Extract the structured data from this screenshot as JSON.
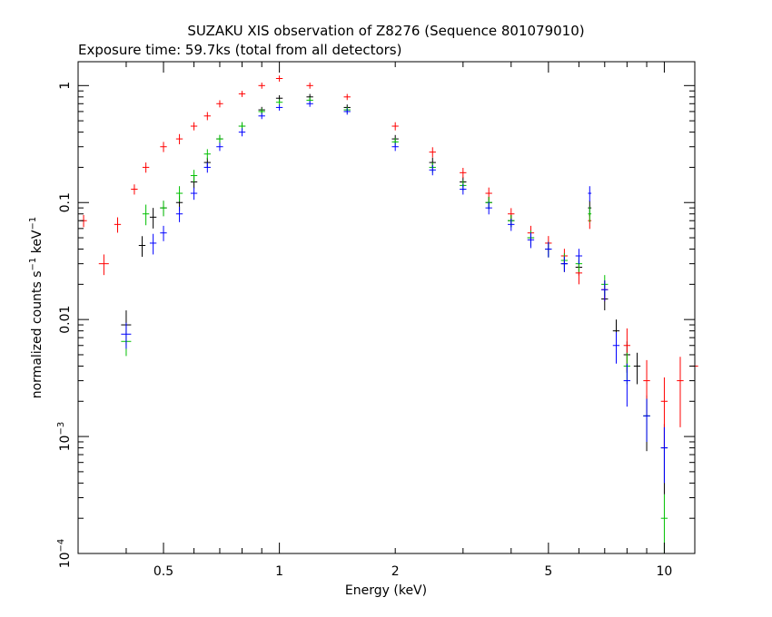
{
  "chart_data": {
    "type": "scatter",
    "title": "SUZAKU XIS observation of Z8276 (Sequence 801079010)",
    "subtitle": "Exposure time: 59.7ks (total from all detectors)",
    "xlabel": "Energy (keV)",
    "ylabel_main": "normalized counts s",
    "ylabel_sup1": "−1",
    "ylabel_mid": " keV",
    "ylabel_sup2": "−1",
    "x_scale": "log",
    "y_scale": "log",
    "xlim": [
      0.3,
      12
    ],
    "ylim": [
      0.0001,
      1.6
    ],
    "grid": false,
    "x_ticks": [
      {
        "value": 0.5,
        "label": "0.5"
      },
      {
        "value": 1,
        "label": "1"
      },
      {
        "value": 2,
        "label": "2"
      },
      {
        "value": 5,
        "label": "5"
      },
      {
        "value": 10,
        "label": "10"
      }
    ],
    "y_ticks": [
      {
        "value": 1,
        "label": "1"
      },
      {
        "value": 0.1,
        "label": "0.1"
      },
      {
        "value": 0.01,
        "label": "0.01"
      },
      {
        "value": 0.001,
        "label_base": "10",
        "label_exp": "−3"
      },
      {
        "value": 0.0001,
        "label_base": "10",
        "label_exp": "−4"
      }
    ],
    "series": [
      {
        "color": "#000000",
        "points": [
          [
            0.4,
            0.009,
            0.03,
            0.33
          ],
          [
            0.44,
            0.043,
            0.02,
            0.2
          ],
          [
            0.47,
            0.075,
            0.02,
            0.2
          ],
          [
            0.5,
            0.09,
            0.02,
            0.15
          ],
          [
            0.55,
            0.1,
            0.02,
            0.15
          ],
          [
            0.6,
            0.15,
            0.02,
            0.12
          ],
          [
            0.65,
            0.22,
            0.02,
            0.1
          ],
          [
            0.7,
            0.35,
            0.02,
            0.08
          ],
          [
            0.8,
            0.45,
            0.02,
            0.08
          ],
          [
            0.9,
            0.62,
            0.02,
            0.06
          ],
          [
            1.0,
            0.78,
            0.02,
            0.06
          ],
          [
            1.2,
            0.8,
            0.02,
            0.06
          ],
          [
            1.5,
            0.65,
            0.02,
            0.06
          ],
          [
            2.0,
            0.35,
            0.02,
            0.08
          ],
          [
            2.5,
            0.22,
            0.02,
            0.1
          ],
          [
            3.0,
            0.15,
            0.02,
            0.1
          ],
          [
            3.5,
            0.1,
            0.02,
            0.12
          ],
          [
            4.0,
            0.07,
            0.02,
            0.12
          ],
          [
            4.5,
            0.05,
            0.02,
            0.15
          ],
          [
            5.0,
            0.04,
            0.02,
            0.15
          ],
          [
            5.5,
            0.03,
            0.02,
            0.15
          ],
          [
            6.0,
            0.028,
            0.02,
            0.15
          ],
          [
            6.4,
            0.09,
            0.01,
            0.15
          ],
          [
            7.0,
            0.015,
            0.02,
            0.2
          ],
          [
            7.5,
            0.008,
            0.02,
            0.25
          ],
          [
            8.0,
            0.005,
            0.02,
            0.3
          ],
          [
            8.5,
            0.004,
            0.02,
            0.3
          ],
          [
            9.0,
            0.0015,
            0.02,
            0.5
          ],
          [
            10.0,
            0.0008,
            0.02,
            0.6
          ]
        ]
      },
      {
        "color": "#ff0000",
        "points": [
          [
            0.31,
            0.07,
            0.02,
            0.12
          ],
          [
            0.35,
            0.03,
            0.03,
            0.2
          ],
          [
            0.38,
            0.065,
            0.02,
            0.15
          ],
          [
            0.42,
            0.13,
            0.02,
            0.1
          ],
          [
            0.45,
            0.2,
            0.02,
            0.1
          ],
          [
            0.5,
            0.3,
            0.02,
            0.1
          ],
          [
            0.55,
            0.35,
            0.02,
            0.1
          ],
          [
            0.6,
            0.45,
            0.02,
            0.08
          ],
          [
            0.65,
            0.55,
            0.02,
            0.08
          ],
          [
            0.7,
            0.7,
            0.02,
            0.07
          ],
          [
            0.8,
            0.85,
            0.02,
            0.06
          ],
          [
            0.9,
            1.0,
            0.02,
            0.06
          ],
          [
            1.0,
            1.15,
            0.02,
            0.06
          ],
          [
            1.2,
            1.0,
            0.02,
            0.06
          ],
          [
            1.5,
            0.8,
            0.02,
            0.06
          ],
          [
            2.0,
            0.45,
            0.02,
            0.08
          ],
          [
            2.5,
            0.27,
            0.02,
            0.1
          ],
          [
            3.0,
            0.18,
            0.02,
            0.1
          ],
          [
            3.5,
            0.12,
            0.02,
            0.12
          ],
          [
            4.0,
            0.08,
            0.02,
            0.12
          ],
          [
            4.5,
            0.055,
            0.02,
            0.15
          ],
          [
            5.0,
            0.045,
            0.02,
            0.15
          ],
          [
            5.5,
            0.035,
            0.02,
            0.15
          ],
          [
            6.0,
            0.025,
            0.02,
            0.2
          ],
          [
            6.4,
            0.07,
            0.01,
            0.15
          ],
          [
            7.0,
            0.018,
            0.02,
            0.2
          ],
          [
            8.0,
            0.006,
            0.02,
            0.4
          ],
          [
            9.0,
            0.003,
            0.02,
            0.5
          ],
          [
            10.0,
            0.002,
            0.02,
            0.6
          ],
          [
            11.0,
            0.003,
            0.02,
            0.6
          ],
          [
            12.0,
            0.004,
            0.02,
            0.6
          ]
        ]
      },
      {
        "color": "#00c000",
        "points": [
          [
            0.4,
            0.0065,
            0.03,
            0.25
          ],
          [
            0.45,
            0.08,
            0.02,
            0.2
          ],
          [
            0.5,
            0.09,
            0.02,
            0.15
          ],
          [
            0.55,
            0.12,
            0.02,
            0.15
          ],
          [
            0.6,
            0.17,
            0.02,
            0.12
          ],
          [
            0.65,
            0.26,
            0.02,
            0.1
          ],
          [
            0.7,
            0.35,
            0.02,
            0.08
          ],
          [
            0.8,
            0.45,
            0.02,
            0.08
          ],
          [
            0.9,
            0.6,
            0.02,
            0.06
          ],
          [
            1.0,
            0.72,
            0.02,
            0.06
          ],
          [
            1.2,
            0.75,
            0.02,
            0.06
          ],
          [
            1.5,
            0.62,
            0.02,
            0.06
          ],
          [
            2.0,
            0.33,
            0.02,
            0.08
          ],
          [
            2.5,
            0.2,
            0.02,
            0.1
          ],
          [
            3.0,
            0.14,
            0.02,
            0.1
          ],
          [
            3.5,
            0.1,
            0.02,
            0.12
          ],
          [
            4.0,
            0.07,
            0.02,
            0.12
          ],
          [
            4.5,
            0.05,
            0.02,
            0.15
          ],
          [
            5.0,
            0.04,
            0.02,
            0.15
          ],
          [
            5.5,
            0.032,
            0.02,
            0.15
          ],
          [
            6.0,
            0.03,
            0.02,
            0.15
          ],
          [
            6.4,
            0.08,
            0.01,
            0.15
          ],
          [
            7.0,
            0.02,
            0.02,
            0.2
          ],
          [
            8.0,
            0.004,
            0.02,
            0.3
          ],
          [
            9.0,
            0.0015,
            0.02,
            0.4
          ],
          [
            10.0,
            0.0002,
            0.02,
            0.6
          ]
        ]
      },
      {
        "color": "#0000ff",
        "points": [
          [
            0.4,
            0.0075,
            0.03,
            0.25
          ],
          [
            0.47,
            0.045,
            0.02,
            0.2
          ],
          [
            0.5,
            0.055,
            0.02,
            0.15
          ],
          [
            0.55,
            0.08,
            0.02,
            0.15
          ],
          [
            0.6,
            0.12,
            0.02,
            0.12
          ],
          [
            0.65,
            0.2,
            0.02,
            0.1
          ],
          [
            0.7,
            0.3,
            0.02,
            0.08
          ],
          [
            0.8,
            0.4,
            0.02,
            0.08
          ],
          [
            0.9,
            0.55,
            0.02,
            0.06
          ],
          [
            1.0,
            0.65,
            0.02,
            0.06
          ],
          [
            1.2,
            0.7,
            0.02,
            0.06
          ],
          [
            1.5,
            0.6,
            0.02,
            0.06
          ],
          [
            2.0,
            0.3,
            0.02,
            0.08
          ],
          [
            2.5,
            0.19,
            0.02,
            0.1
          ],
          [
            3.0,
            0.13,
            0.02,
            0.1
          ],
          [
            3.5,
            0.09,
            0.02,
            0.12
          ],
          [
            4.0,
            0.065,
            0.02,
            0.12
          ],
          [
            4.5,
            0.048,
            0.02,
            0.15
          ],
          [
            5.0,
            0.04,
            0.02,
            0.15
          ],
          [
            5.5,
            0.03,
            0.02,
            0.15
          ],
          [
            6.0,
            0.035,
            0.02,
            0.15
          ],
          [
            6.4,
            0.12,
            0.01,
            0.15
          ],
          [
            7.0,
            0.018,
            0.02,
            0.2
          ],
          [
            7.5,
            0.006,
            0.02,
            0.3
          ],
          [
            8.0,
            0.003,
            0.02,
            0.4
          ],
          [
            9.0,
            0.0015,
            0.02,
            0.4
          ],
          [
            10.0,
            0.0008,
            0.02,
            0.5
          ]
        ]
      }
    ]
  }
}
